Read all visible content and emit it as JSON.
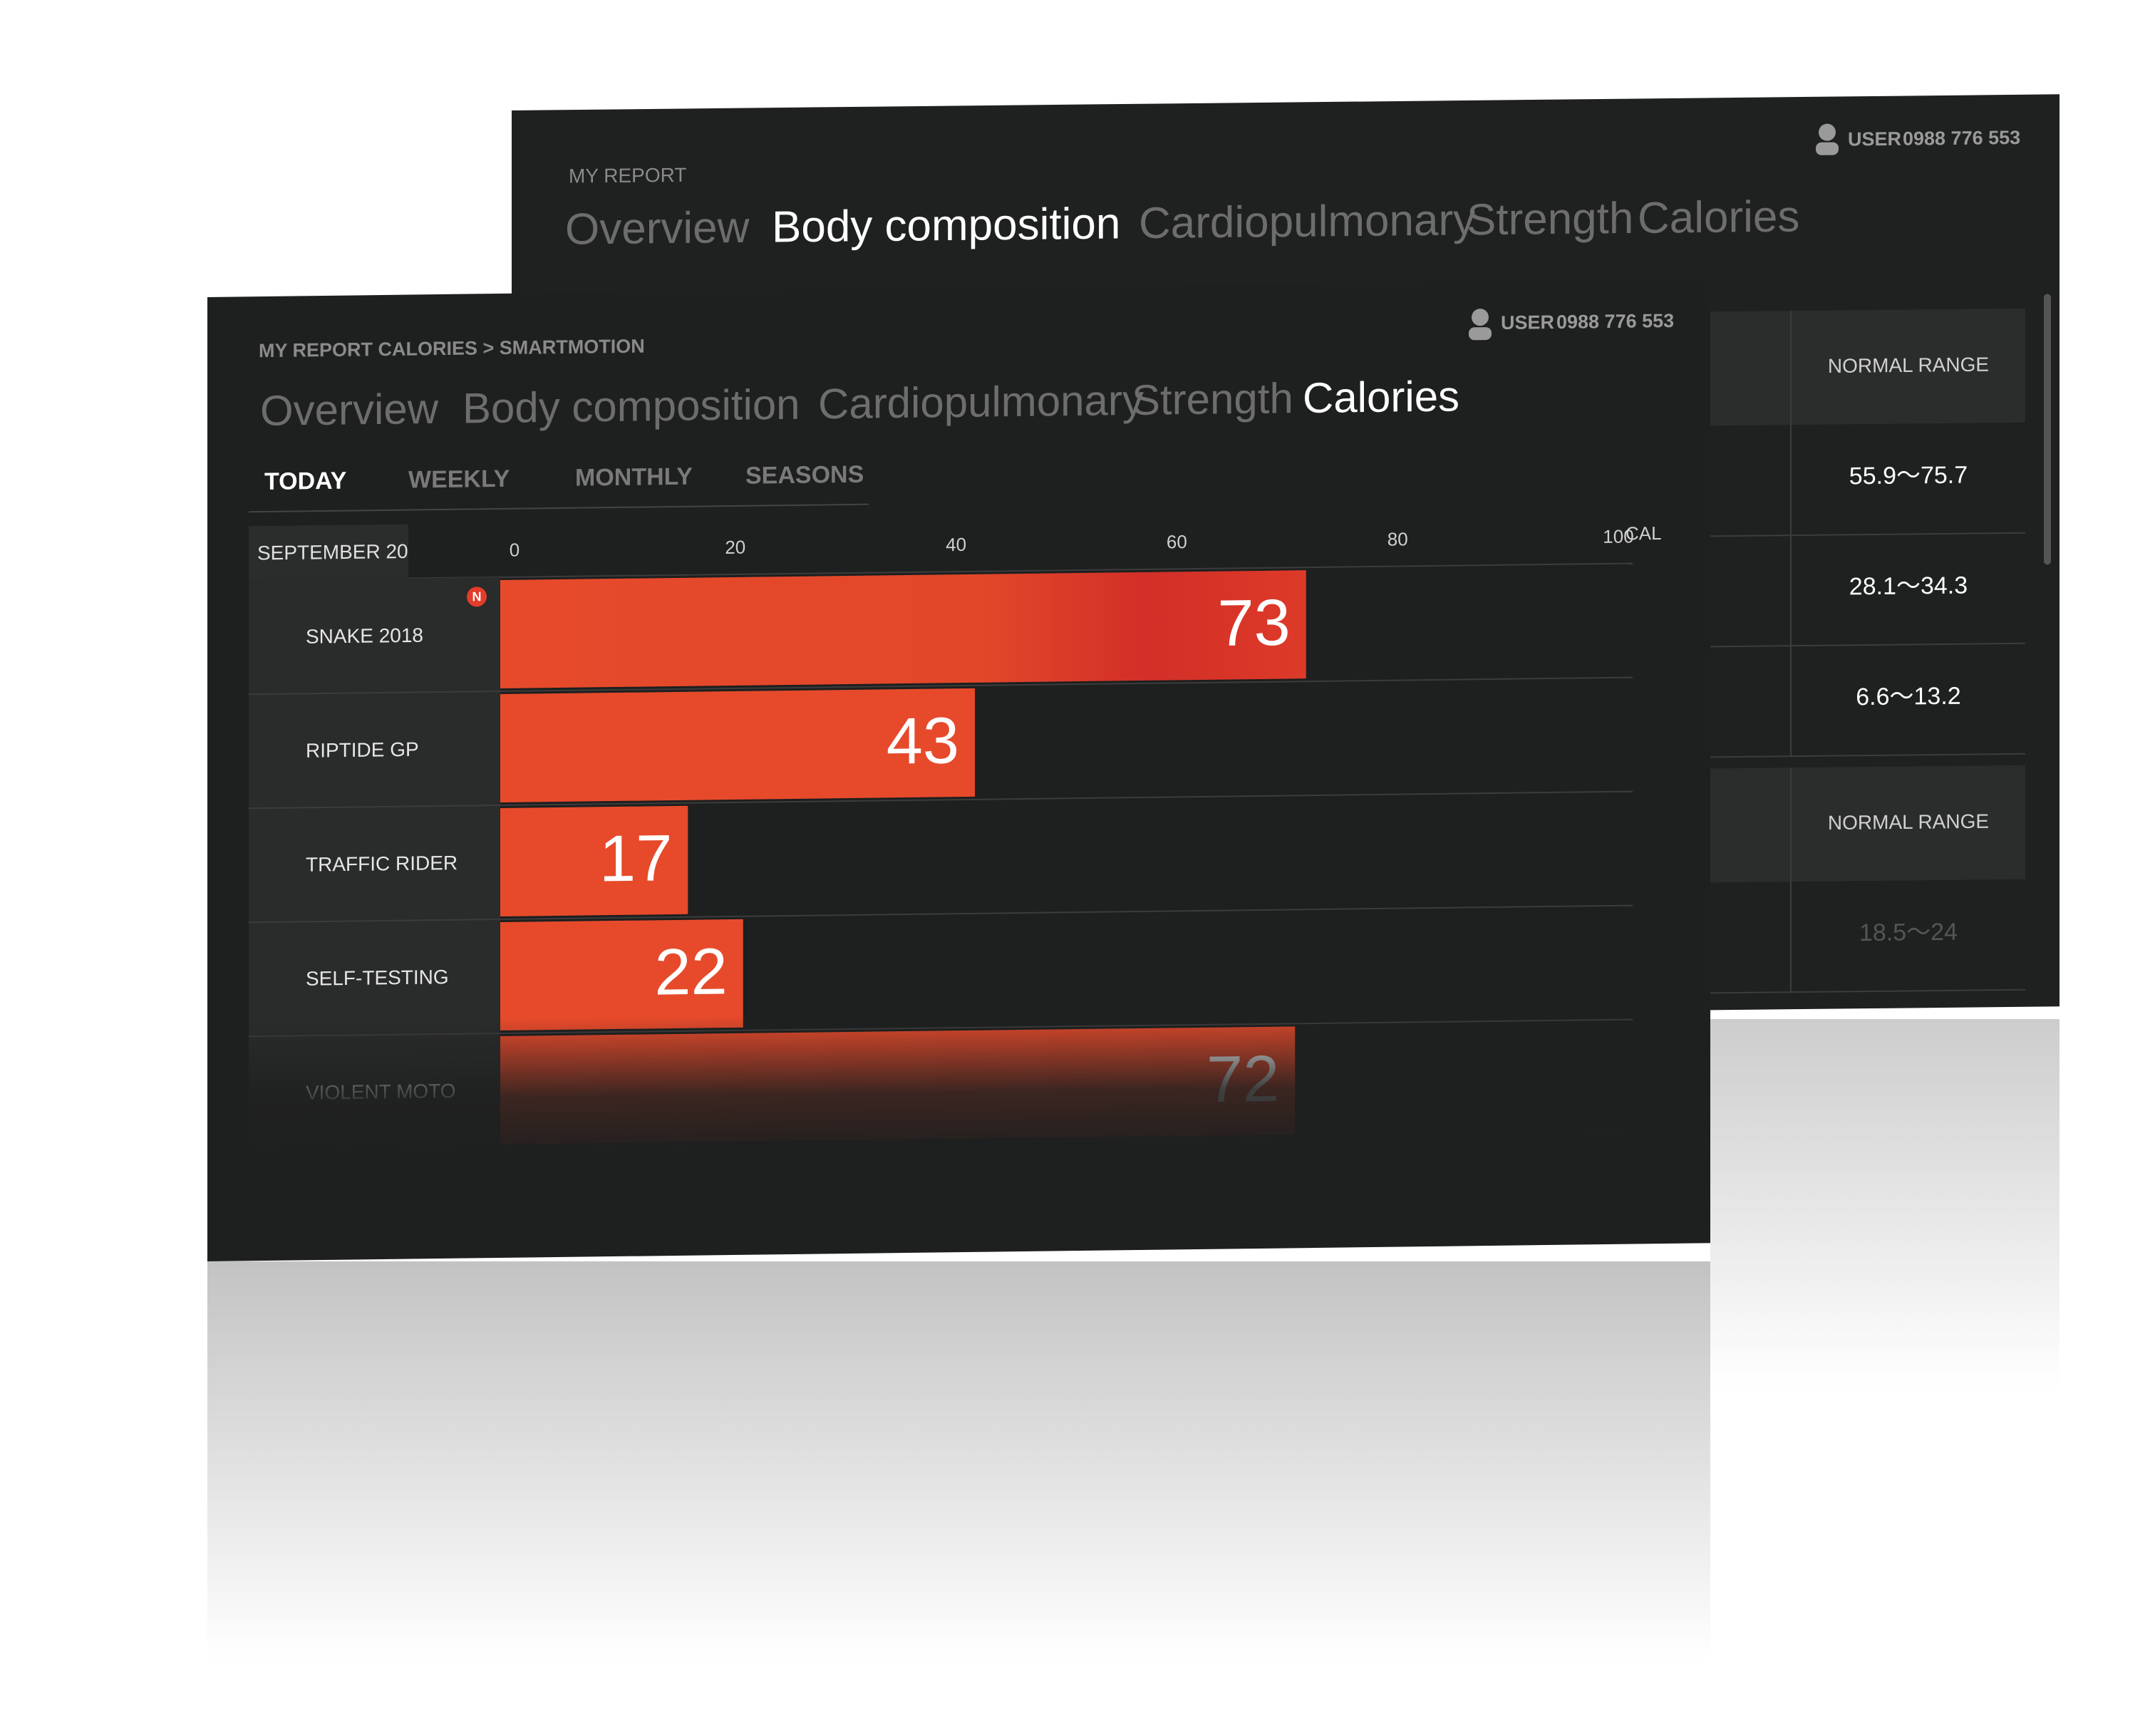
{
  "back_screen": {
    "breadcrumb": "MY REPORT",
    "tabs": [
      "Overview",
      "Body composition",
      "Cardiopulmonary",
      "Strength",
      "Calories"
    ],
    "active_tab": 1,
    "user_label": "USER",
    "user_id": "0988 776 553",
    "tables": [
      {
        "header": "NORMAL RANGE",
        "rows": [
          "55.9～75.7",
          "28.1～34.3",
          "6.6～13.2"
        ]
      },
      {
        "header": "NORMAL RANGE",
        "rows": [
          "18.5～24"
        ]
      }
    ]
  },
  "front_screen": {
    "breadcrumb": "MY REPORT CALORIES > SMARTMOTION",
    "tabs": [
      "Overview",
      "Body composition",
      "Cardiopulmonary",
      "Strength",
      "Calories"
    ],
    "active_tab": 4,
    "user_label": "USER",
    "user_id": "0988 776 553",
    "periods": [
      "TODAY",
      "WEEKLY",
      "MONTHLY",
      "SEASONS"
    ],
    "active_period": 0,
    "date": "SEPTEMBER 20",
    "badge": "N"
  },
  "chart_data": {
    "type": "bar",
    "orientation": "horizontal",
    "categories": [
      "SNAKE 2018",
      "RIPTIDE GP",
      "TRAFFIC RIDER",
      "SELF-TESTING",
      "VIOLENT MOTO"
    ],
    "values": [
      73,
      43,
      17,
      22,
      72
    ],
    "color": "#e64a2b",
    "xlim": [
      0,
      100
    ],
    "xticks": [
      0,
      20,
      40,
      60,
      80,
      100
    ],
    "x_label": "CAL"
  }
}
